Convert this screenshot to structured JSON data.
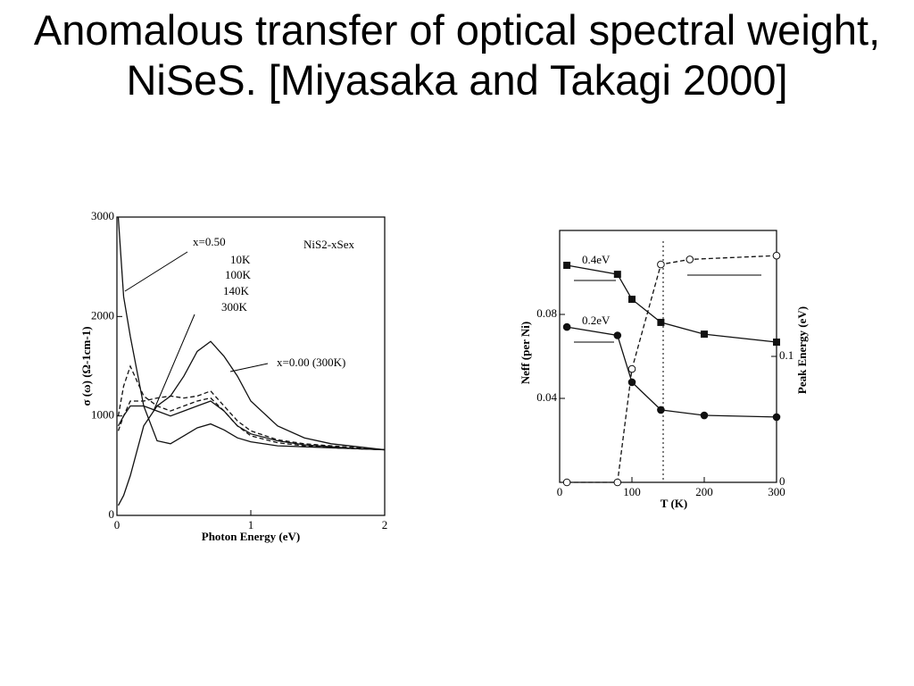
{
  "title": "Anomalous transfer of optical spectral weight, NiSeS. [Miyasaka and Takagi 2000]",
  "chart_data": [
    {
      "type": "line",
      "xlabel": "Photon Energy (eV)",
      "ylabel": "σ (ω) (Ω-1cm-1)",
      "annotations": [
        "NiS2-xSex",
        "x=0.50"
      ],
      "xlim": [
        0,
        2
      ],
      "xticks": [
        0,
        1,
        2
      ],
      "ylim": [
        0,
        3000
      ],
      "yticks": [
        0,
        1000,
        2000,
        3000
      ],
      "x": [
        0.01,
        0.05,
        0.1,
        0.2,
        0.3,
        0.4,
        0.5,
        0.6,
        0.7,
        0.8,
        0.9,
        1.0,
        1.2,
        1.4,
        1.6,
        1.8,
        2.0
      ],
      "series": [
        {
          "name": "10K",
          "color": "#111111",
          "dash": false,
          "values": [
            3000,
            2200,
            1800,
            1100,
            750,
            720,
            800,
            880,
            920,
            860,
            780,
            740,
            700,
            690,
            680,
            670,
            660
          ]
        },
        {
          "name": "100K",
          "color": "#111111",
          "dash": true,
          "values": [
            1000,
            1300,
            1500,
            1200,
            1100,
            1050,
            1100,
            1150,
            1180,
            1050,
            900,
            800,
            730,
            700,
            680,
            670,
            660
          ]
        },
        {
          "name": "140K",
          "color": "#111111",
          "dash": false,
          "values": [
            900,
            1000,
            1100,
            1100,
            1050,
            1000,
            1050,
            1100,
            1150,
            1050,
            900,
            820,
            750,
            710,
            690,
            670,
            660
          ]
        },
        {
          "name": "300K",
          "color": "#111111",
          "dash": true,
          "values": [
            850,
            1000,
            1150,
            1150,
            1180,
            1200,
            1180,
            1200,
            1250,
            1100,
            950,
            850,
            760,
            720,
            700,
            680,
            660
          ]
        },
        {
          "name": "x=0.00 (300K)",
          "color": "#111111",
          "dash": false,
          "values": [
            100,
            200,
            400,
            900,
            1100,
            1200,
            1400,
            1650,
            1750,
            1600,
            1400,
            1150,
            900,
            780,
            720,
            690,
            660
          ]
        }
      ]
    },
    {
      "type": "line",
      "xlabel": "T (K)",
      "ylabel": "Neff (per Ni)",
      "y2label": "Peak Energy (eV)",
      "xlim": [
        0,
        300
      ],
      "xticks": [
        0,
        100,
        200,
        300
      ],
      "ylim": [
        0,
        0.12
      ],
      "yticks": [
        0.04,
        0.08
      ],
      "y2lim": [
        0,
        0.2
      ],
      "y2ticks": [
        0,
        0.1
      ],
      "series": [
        {
          "name": "0.4eV",
          "color": "#111111",
          "marker": "square",
          "dash": false,
          "x": [
            10,
            80,
            100,
            140,
            200,
            300
          ],
          "values": [
            0.1034,
            0.0991,
            0.0872,
            0.0762,
            0.0706,
            0.0668
          ]
        },
        {
          "name": "0.2eV",
          "color": "#111111",
          "marker": "circle",
          "dash": false,
          "x": [
            10,
            80,
            100,
            140,
            200,
            300
          ],
          "values": [
            0.074,
            0.07,
            0.0477,
            0.0345,
            0.0319,
            0.0311
          ]
        },
        {
          "color": "#111111",
          "marker": "open",
          "dash": true,
          "axis": "y2",
          "x": [
            10,
            80,
            100,
            140,
            180,
            300
          ],
          "values": [
            0,
            0,
            0.09,
            0.173,
            0.177,
            0.18
          ]
        }
      ]
    }
  ]
}
